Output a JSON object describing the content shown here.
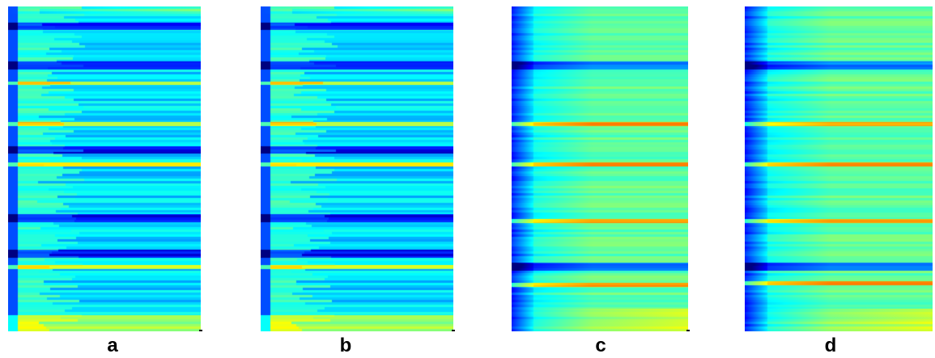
{
  "figure": {
    "colormap": "jet",
    "panels": [
      {
        "label": "a",
        "pattern": "low",
        "bright_line_fractions": [
          0.235,
          0.36,
          0.485,
          0.8
        ],
        "dark_line_fractions": [
          0.06,
          0.18,
          0.44,
          0.65,
          0.76
        ]
      },
      {
        "label": "b",
        "pattern": "low",
        "bright_line_fractions": [
          0.235,
          0.36,
          0.485,
          0.8
        ],
        "dark_line_fractions": [
          0.06,
          0.18,
          0.44,
          0.65,
          0.76
        ]
      },
      {
        "label": "c",
        "pattern": "high",
        "bright_line_fractions": [
          0.36,
          0.485,
          0.66,
          0.855
        ],
        "dark_line_fractions": [
          0.18,
          0.8
        ]
      },
      {
        "label": "d",
        "pattern": "high",
        "bright_line_fractions": [
          0.36,
          0.485,
          0.66,
          0.85
        ],
        "dark_line_fractions": [
          0.18,
          0.8
        ]
      }
    ]
  }
}
